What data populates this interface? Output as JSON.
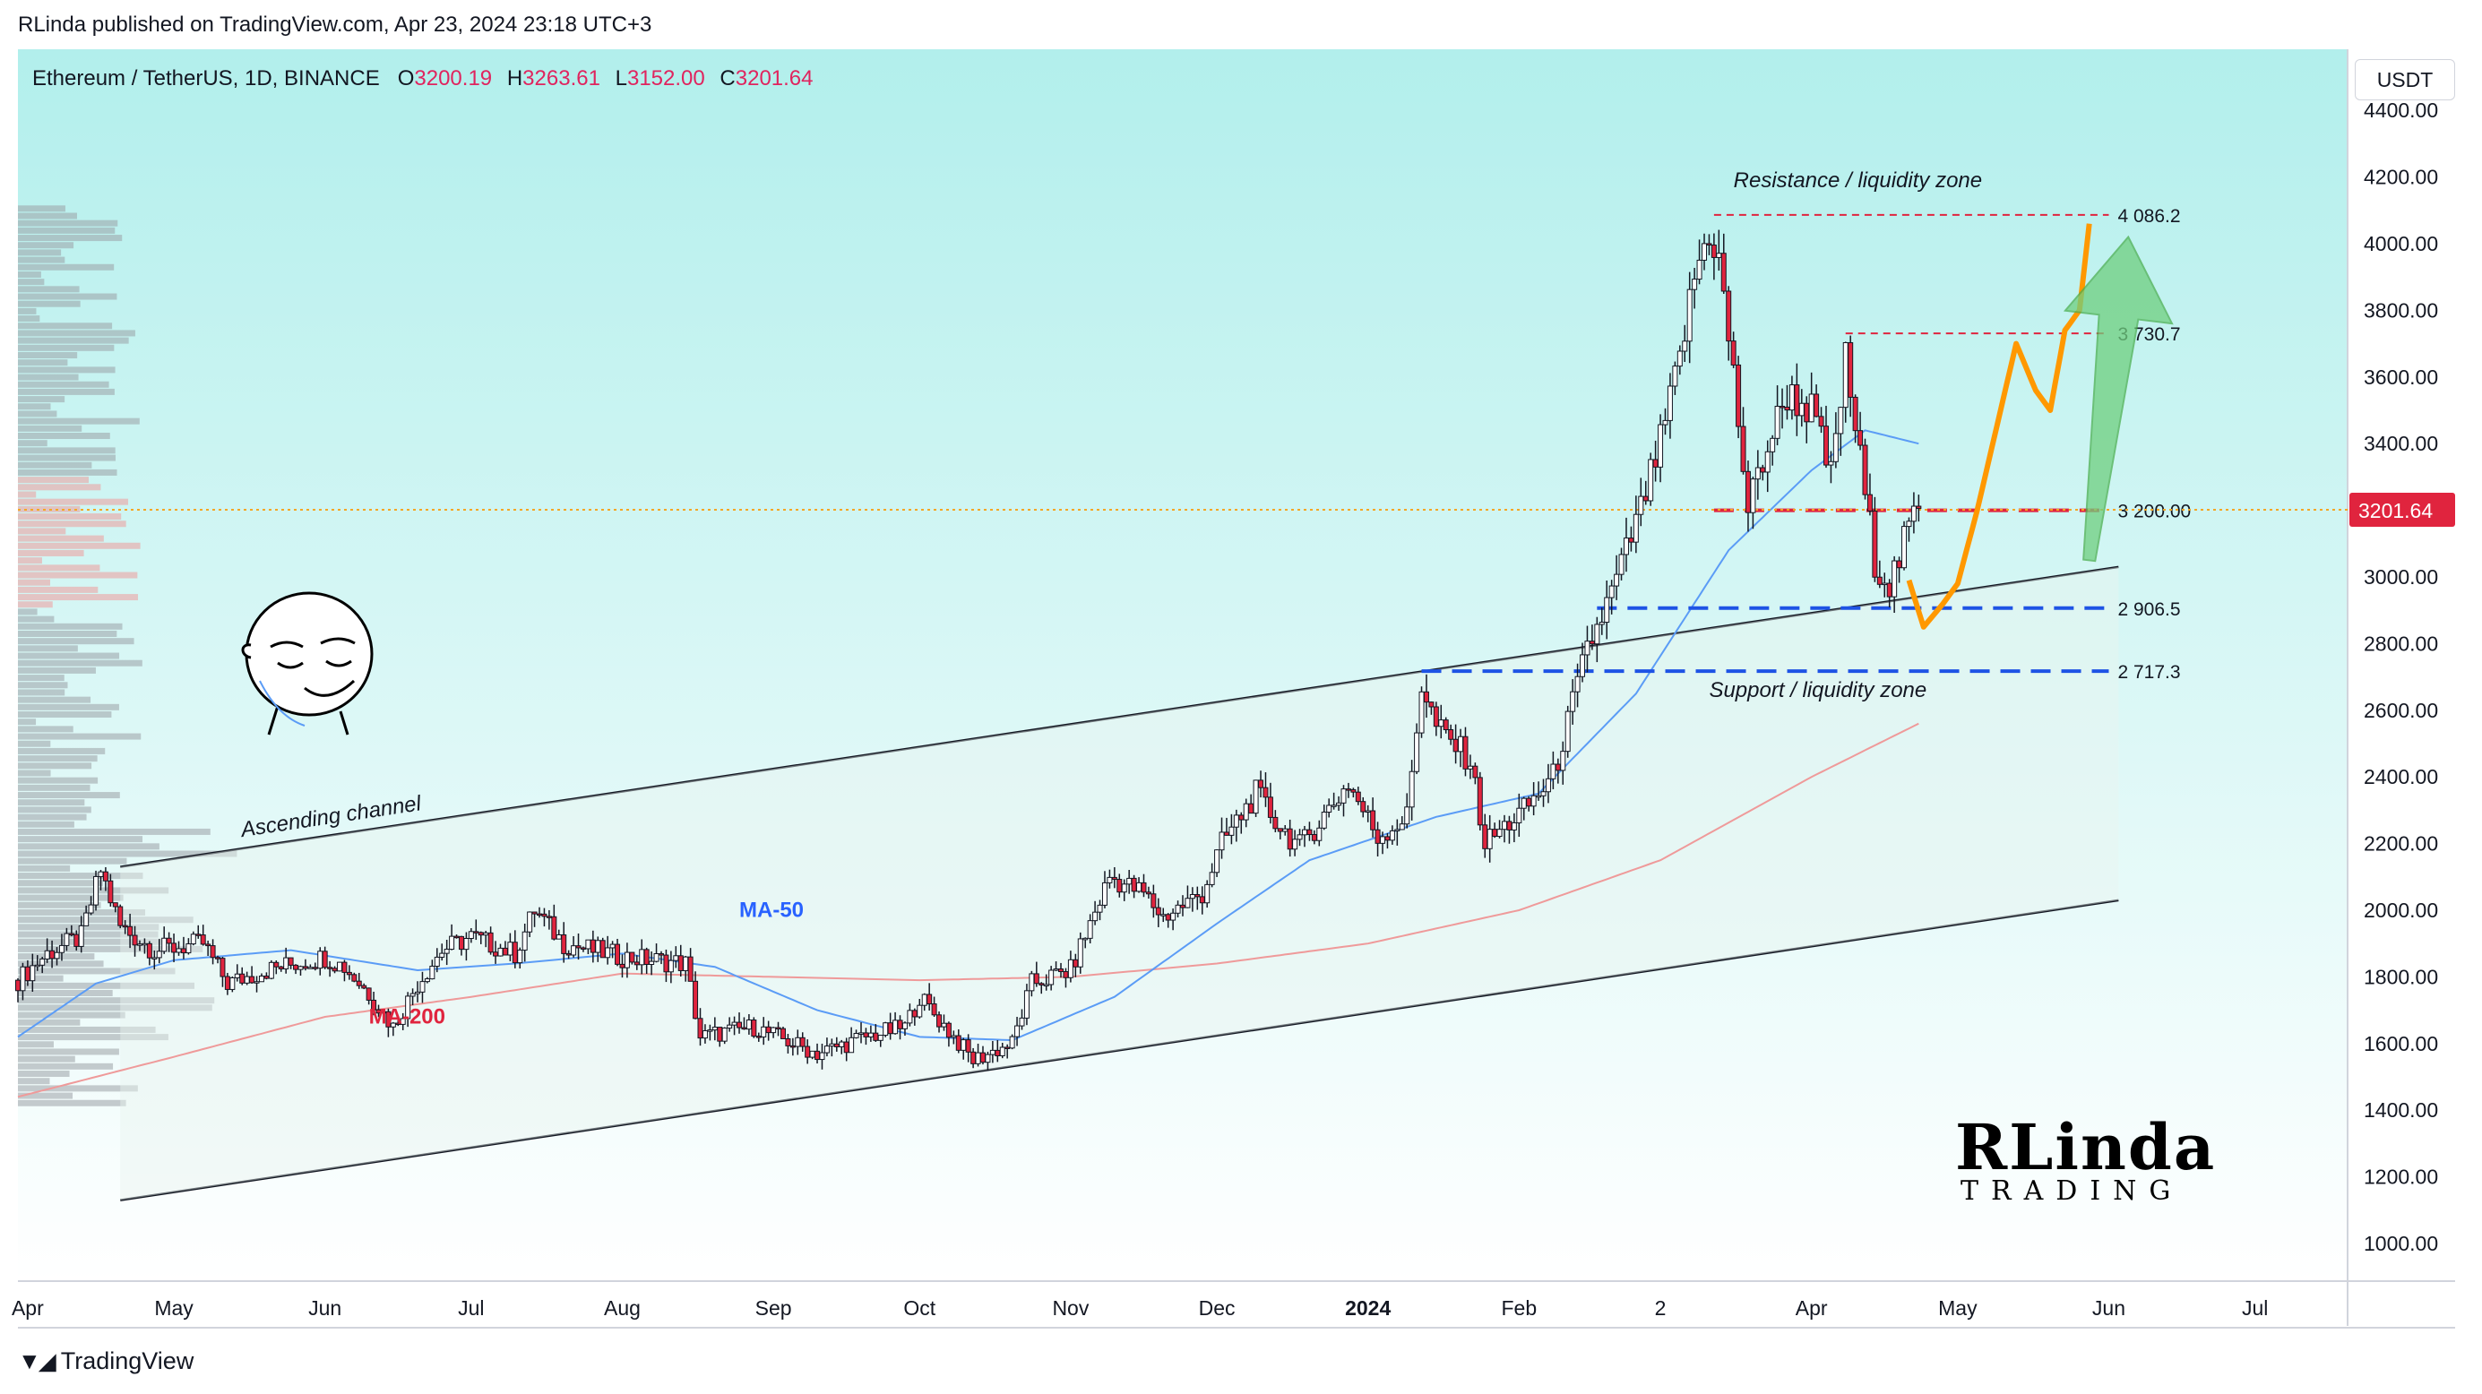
{
  "header": {
    "text": "RLinda published on TradingView.com, Apr 23, 2024 23:18 UTC+3"
  },
  "legend": {
    "symbol": "Ethereum / TetherUS, 1D, BINANCE",
    "open_label": "O",
    "open": "3200.19",
    "high_label": "H",
    "high": "3263.61",
    "low_label": "L",
    "low": "3152.00",
    "close_label": "C",
    "close": "3201.64"
  },
  "currency_button": "USDT",
  "footer": {
    "brand": "TradingView"
  },
  "logo": {
    "line1": "RLinda",
    "line2": "TRADING"
  },
  "colors": {
    "bg_top": "#b2efec",
    "bg_bottom": "#ffffff",
    "up": "#ffffff",
    "down": "#e0243e",
    "ma50": "#5b9cf6",
    "ma200": "#ef9a9a",
    "projection": "#ff9800",
    "arrow": "#6fcf7f",
    "resistance": "#e0243e",
    "support": "#1e53e5",
    "price_line": "#e0243e"
  },
  "chart_data": {
    "type": "candlestick",
    "title": "Ethereum / TetherUS, 1D, BINANCE",
    "ylabel": "USDT",
    "ylim": [
      1000,
      4450
    ],
    "y_ticks": [
      1000,
      1200,
      1400,
      1600,
      1800,
      2000,
      2200,
      2400,
      2600,
      2800,
      3000,
      3200,
      3400,
      3600,
      3800,
      4000,
      4200,
      4400
    ],
    "y_tick_labels": [
      "1000.00",
      "1200.00",
      "1400.00",
      "1600.00",
      "1800.00",
      "2000.00",
      "2200.00",
      "2400.00",
      "2600.00",
      "2800.00",
      "3000.00",
      "3200.00",
      "3400.00",
      "3600.00",
      "3800.00",
      "4000.00",
      "4200.00",
      "4400.00"
    ],
    "x_range": [
      "2023-03-30",
      "2024-07-20"
    ],
    "x_ticks": [
      {
        "label": "Apr",
        "date": "2023-04-01"
      },
      {
        "label": "May",
        "date": "2023-05-01"
      },
      {
        "label": "Jun",
        "date": "2023-06-01"
      },
      {
        "label": "Jul",
        "date": "2023-07-01"
      },
      {
        "label": "Aug",
        "date": "2023-08-01"
      },
      {
        "label": "Sep",
        "date": "2023-09-01"
      },
      {
        "label": "Oct",
        "date": "2023-10-01"
      },
      {
        "label": "Nov",
        "date": "2023-11-01"
      },
      {
        "label": "Dec",
        "date": "2023-12-01"
      },
      {
        "label": "2024",
        "date": "2024-01-01"
      },
      {
        "label": "Feb",
        "date": "2024-02-01"
      },
      {
        "label": "2",
        "date": "2024-03-01"
      },
      {
        "label": "Apr",
        "date": "2024-04-01"
      },
      {
        "label": "May",
        "date": "2024-05-01"
      },
      {
        "label": "Jun",
        "date": "2024-06-01"
      },
      {
        "label": "Jul",
        "date": "2024-07-01"
      }
    ],
    "price_anchors": [
      [
        "2023-03-30",
        1790
      ],
      [
        "2023-04-05",
        1870
      ],
      [
        "2023-04-12",
        1920
      ],
      [
        "2023-04-16",
        2120
      ],
      [
        "2023-04-20",
        1950
      ],
      [
        "2023-04-27",
        1880
      ],
      [
        "2023-05-07",
        1900
      ],
      [
        "2023-05-12",
        1780
      ],
      [
        "2023-05-20",
        1820
      ],
      [
        "2023-06-01",
        1860
      ],
      [
        "2023-06-05",
        1830
      ],
      [
        "2023-06-10",
        1750
      ],
      [
        "2023-06-15",
        1650
      ],
      [
        "2023-06-20",
        1780
      ],
      [
        "2023-06-25",
        1880
      ],
      [
        "2023-07-01",
        1920
      ],
      [
        "2023-07-10",
        1870
      ],
      [
        "2023-07-14",
        2000
      ],
      [
        "2023-07-20",
        1900
      ],
      [
        "2023-08-01",
        1860
      ],
      [
        "2023-08-14",
        1840
      ],
      [
        "2023-08-17",
        1620
      ],
      [
        "2023-08-28",
        1650
      ],
      [
        "2023-09-10",
        1570
      ],
      [
        "2023-09-20",
        1620
      ],
      [
        "2023-09-28",
        1650
      ],
      [
        "2023-10-01",
        1740
      ],
      [
        "2023-10-08",
        1620
      ],
      [
        "2023-10-12",
        1550
      ],
      [
        "2023-10-20",
        1600
      ],
      [
        "2023-10-24",
        1780
      ],
      [
        "2023-11-01",
        1820
      ],
      [
        "2023-11-09",
        2100
      ],
      [
        "2023-11-16",
        2050
      ],
      [
        "2023-11-20",
        1980
      ],
      [
        "2023-11-28",
        2050
      ],
      [
        "2023-12-02",
        2200
      ],
      [
        "2023-12-09",
        2350
      ],
      [
        "2023-12-14",
        2250
      ],
      [
        "2023-12-18",
        2190
      ],
      [
        "2023-12-28",
        2380
      ],
      [
        "2024-01-03",
        2220
      ],
      [
        "2024-01-09",
        2280
      ],
      [
        "2024-01-12",
        2680
      ],
      [
        "2024-01-15",
        2550
      ],
      [
        "2024-01-22",
        2450
      ],
      [
        "2024-01-25",
        2200
      ],
      [
        "2024-02-02",
        2300
      ],
      [
        "2024-02-08",
        2400
      ],
      [
        "2024-02-15",
        2780
      ],
      [
        "2024-02-20",
        2950
      ],
      [
        "2024-02-26",
        3200
      ],
      [
        "2024-03-01",
        3400
      ],
      [
        "2024-03-05",
        3650
      ],
      [
        "2024-03-08",
        3900
      ],
      [
        "2024-03-11",
        4040
      ],
      [
        "2024-03-13",
        3950
      ],
      [
        "2024-03-16",
        3600
      ],
      [
        "2024-03-19",
        3200
      ],
      [
        "2024-03-22",
        3350
      ],
      [
        "2024-03-27",
        3550
      ],
      [
        "2024-04-01",
        3500
      ],
      [
        "2024-04-05",
        3300
      ],
      [
        "2024-04-08",
        3650
      ],
      [
        "2024-04-12",
        3250
      ],
      [
        "2024-04-14",
        3050
      ],
      [
        "2024-04-17",
        2980
      ],
      [
        "2024-04-19",
        3050
      ],
      [
        "2024-04-21",
        3150
      ],
      [
        "2024-04-23",
        3201.64
      ]
    ],
    "ma50_anchors": [
      [
        "2023-03-30",
        1620
      ],
      [
        "2023-04-15",
        1780
      ],
      [
        "2023-05-01",
        1850
      ],
      [
        "2023-05-25",
        1880
      ],
      [
        "2023-06-20",
        1820
      ],
      [
        "2023-07-10",
        1840
      ],
      [
        "2023-08-01",
        1870
      ],
      [
        "2023-08-20",
        1830
      ],
      [
        "2023-09-10",
        1700
      ],
      [
        "2023-10-01",
        1620
      ],
      [
        "2023-10-20",
        1610
      ],
      [
        "2023-11-10",
        1740
      ],
      [
        "2023-12-01",
        1960
      ],
      [
        "2023-12-20",
        2150
      ],
      [
        "2024-01-15",
        2280
      ],
      [
        "2024-02-05",
        2350
      ],
      [
        "2024-02-25",
        2650
      ],
      [
        "2024-03-15",
        3080
      ],
      [
        "2024-04-01",
        3320
      ],
      [
        "2024-04-12",
        3440
      ],
      [
        "2024-04-23",
        3400
      ]
    ],
    "ma200_anchors": [
      [
        "2023-03-30",
        1440
      ],
      [
        "2023-05-01",
        1560
      ],
      [
        "2023-06-01",
        1680
      ],
      [
        "2023-07-01",
        1740
      ],
      [
        "2023-08-01",
        1810
      ],
      [
        "2023-09-01",
        1800
      ],
      [
        "2023-10-01",
        1790
      ],
      [
        "2023-11-01",
        1800
      ],
      [
        "2023-12-01",
        1840
      ],
      [
        "2024-01-01",
        1900
      ],
      [
        "2024-02-01",
        2000
      ],
      [
        "2024-03-01",
        2150
      ],
      [
        "2024-04-01",
        2400
      ],
      [
        "2024-04-23",
        2560
      ]
    ],
    "projection_anchors": [
      [
        "2024-04-21",
        2990
      ],
      [
        "2024-04-24",
        2850
      ],
      [
        "2024-04-28",
        2920
      ],
      [
        "2024-05-01",
        2980
      ],
      [
        "2024-05-05",
        3200
      ],
      [
        "2024-05-09",
        3450
      ],
      [
        "2024-05-13",
        3700
      ],
      [
        "2024-05-17",
        3560
      ],
      [
        "2024-05-20",
        3500
      ],
      [
        "2024-05-23",
        3740
      ],
      [
        "2024-05-26",
        3800
      ],
      [
        "2024-05-28",
        4060
      ]
    ],
    "levels": [
      {
        "label": "4 086.2",
        "value": 4086.2,
        "from": "2024-03-12",
        "to": "2024-06-01",
        "style": "dashed",
        "color": "resistance"
      },
      {
        "label": "3 730.7",
        "value": 3730.7,
        "from": "2024-04-08",
        "to": "2024-06-01",
        "style": "dashed",
        "color": "resistance"
      },
      {
        "label": "3 200.00",
        "value": 3200.0,
        "from": "2024-03-12",
        "to": "2024-06-01",
        "style": "longdash",
        "color": "resistance"
      },
      {
        "label": "2 906.5",
        "value": 2906.5,
        "from": "2024-02-17",
        "to": "2024-06-01",
        "style": "longdash",
        "color": "support"
      },
      {
        "label": "2 717.3",
        "value": 2717.3,
        "from": "2024-01-12",
        "to": "2024-06-01",
        "style": "longdash",
        "color": "support"
      }
    ],
    "current_price": {
      "value": 3201.64,
      "label": "3201.64"
    },
    "channel": {
      "upper": [
        [
          "2023-04-20",
          2130
        ],
        [
          "2024-06-03",
          3030
        ]
      ],
      "lower": [
        [
          "2023-04-20",
          1130
        ],
        [
          "2024-06-03",
          2030
        ]
      ]
    },
    "annotations": [
      {
        "text": "Resistance / liquidity zone",
        "date": "2024-03-16",
        "value": 4170
      },
      {
        "text": "Support / liquidity zone",
        "date": "2024-03-11",
        "value": 2640
      },
      {
        "text": "Ascending channel",
        "date": "2023-05-15",
        "value": 2220
      },
      {
        "text": "MA-50",
        "date": "2023-08-25",
        "value": 1980
      },
      {
        "text": "MA-200",
        "date": "2023-06-10",
        "value": 1660
      }
    ],
    "projection_arrow": {
      "from": [
        "2024-05-28",
        3050
      ],
      "to": [
        "2024-06-05",
        4020
      ]
    }
  }
}
